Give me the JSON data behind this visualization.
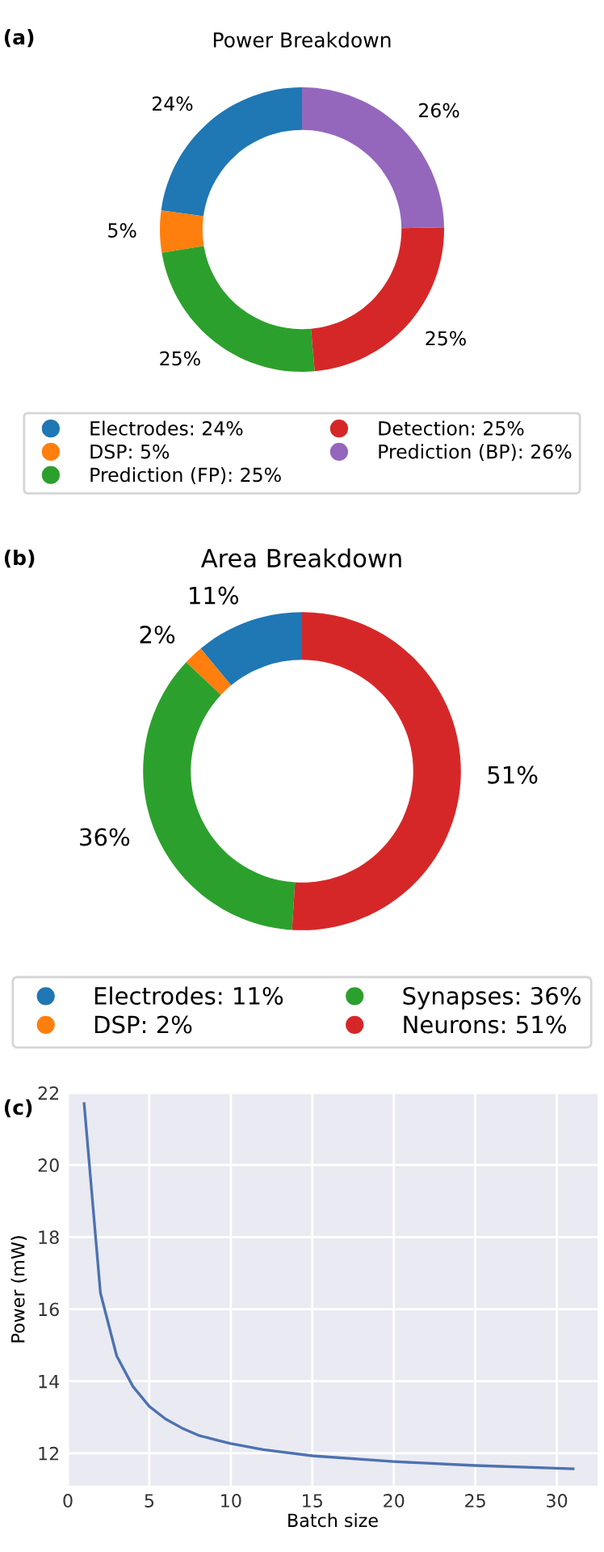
{
  "chart_data": [
    {
      "type": "donut",
      "title": "Power Breakdown",
      "annotations": [
        "(a)"
      ],
      "categories": [
        "Electrodes: 24%",
        "DSP: 5%",
        "Prediction (FP): 25%",
        "Detection: 25%",
        "Prediction (BP): 26%"
      ],
      "values": [
        24,
        5,
        25,
        25,
        26
      ],
      "value_labels": [
        "24%",
        "5%",
        "25%",
        "25%",
        "26%"
      ],
      "colors": [
        "#1f77b4",
        "#ff7f0e",
        "#2ca02c",
        "#d62728",
        "#9467bd"
      ],
      "legend": "bottom",
      "marker": "circle"
    },
    {
      "type": "donut",
      "title": "Area Breakdown",
      "annotations": [
        "(b)"
      ],
      "categories": [
        "Electrodes: 11%",
        "DSP: 2%",
        "Synapses: 36%",
        "Neurons: 51%"
      ],
      "values": [
        11,
        2,
        36,
        51
      ],
      "value_labels": [
        "11%",
        "2%",
        "36%",
        "51%"
      ],
      "colors": [
        "#1f77b4",
        "#ff7f0e",
        "#2ca02c",
        "#d62728"
      ],
      "legend": "bottom",
      "marker": "circle"
    },
    {
      "type": "line",
      "annotations": [
        "(c)"
      ],
      "xlabel": "Batch size",
      "ylabel": "Power (mW)",
      "x": [
        1,
        2,
        3,
        4,
        5,
        6,
        7,
        8,
        9,
        10,
        12,
        15,
        20,
        25,
        31
      ],
      "series": [
        {
          "color": "#4c72b0",
          "values": [
            21.7,
            16.45,
            14.7,
            13.85,
            13.3,
            12.95,
            12.7,
            12.5,
            12.38,
            12.27,
            12.1,
            11.93,
            11.77,
            11.66,
            11.57
          ]
        }
      ],
      "xlim": [
        0,
        32.5
      ],
      "ylim": [
        11.1,
        22.0
      ],
      "xticks": [
        0,
        5,
        10,
        15,
        20,
        25,
        30
      ],
      "yticks": [
        12,
        14,
        16,
        18,
        20,
        22
      ],
      "grid": true,
      "legend": false,
      "marker": "none",
      "line_style": "solid"
    }
  ]
}
